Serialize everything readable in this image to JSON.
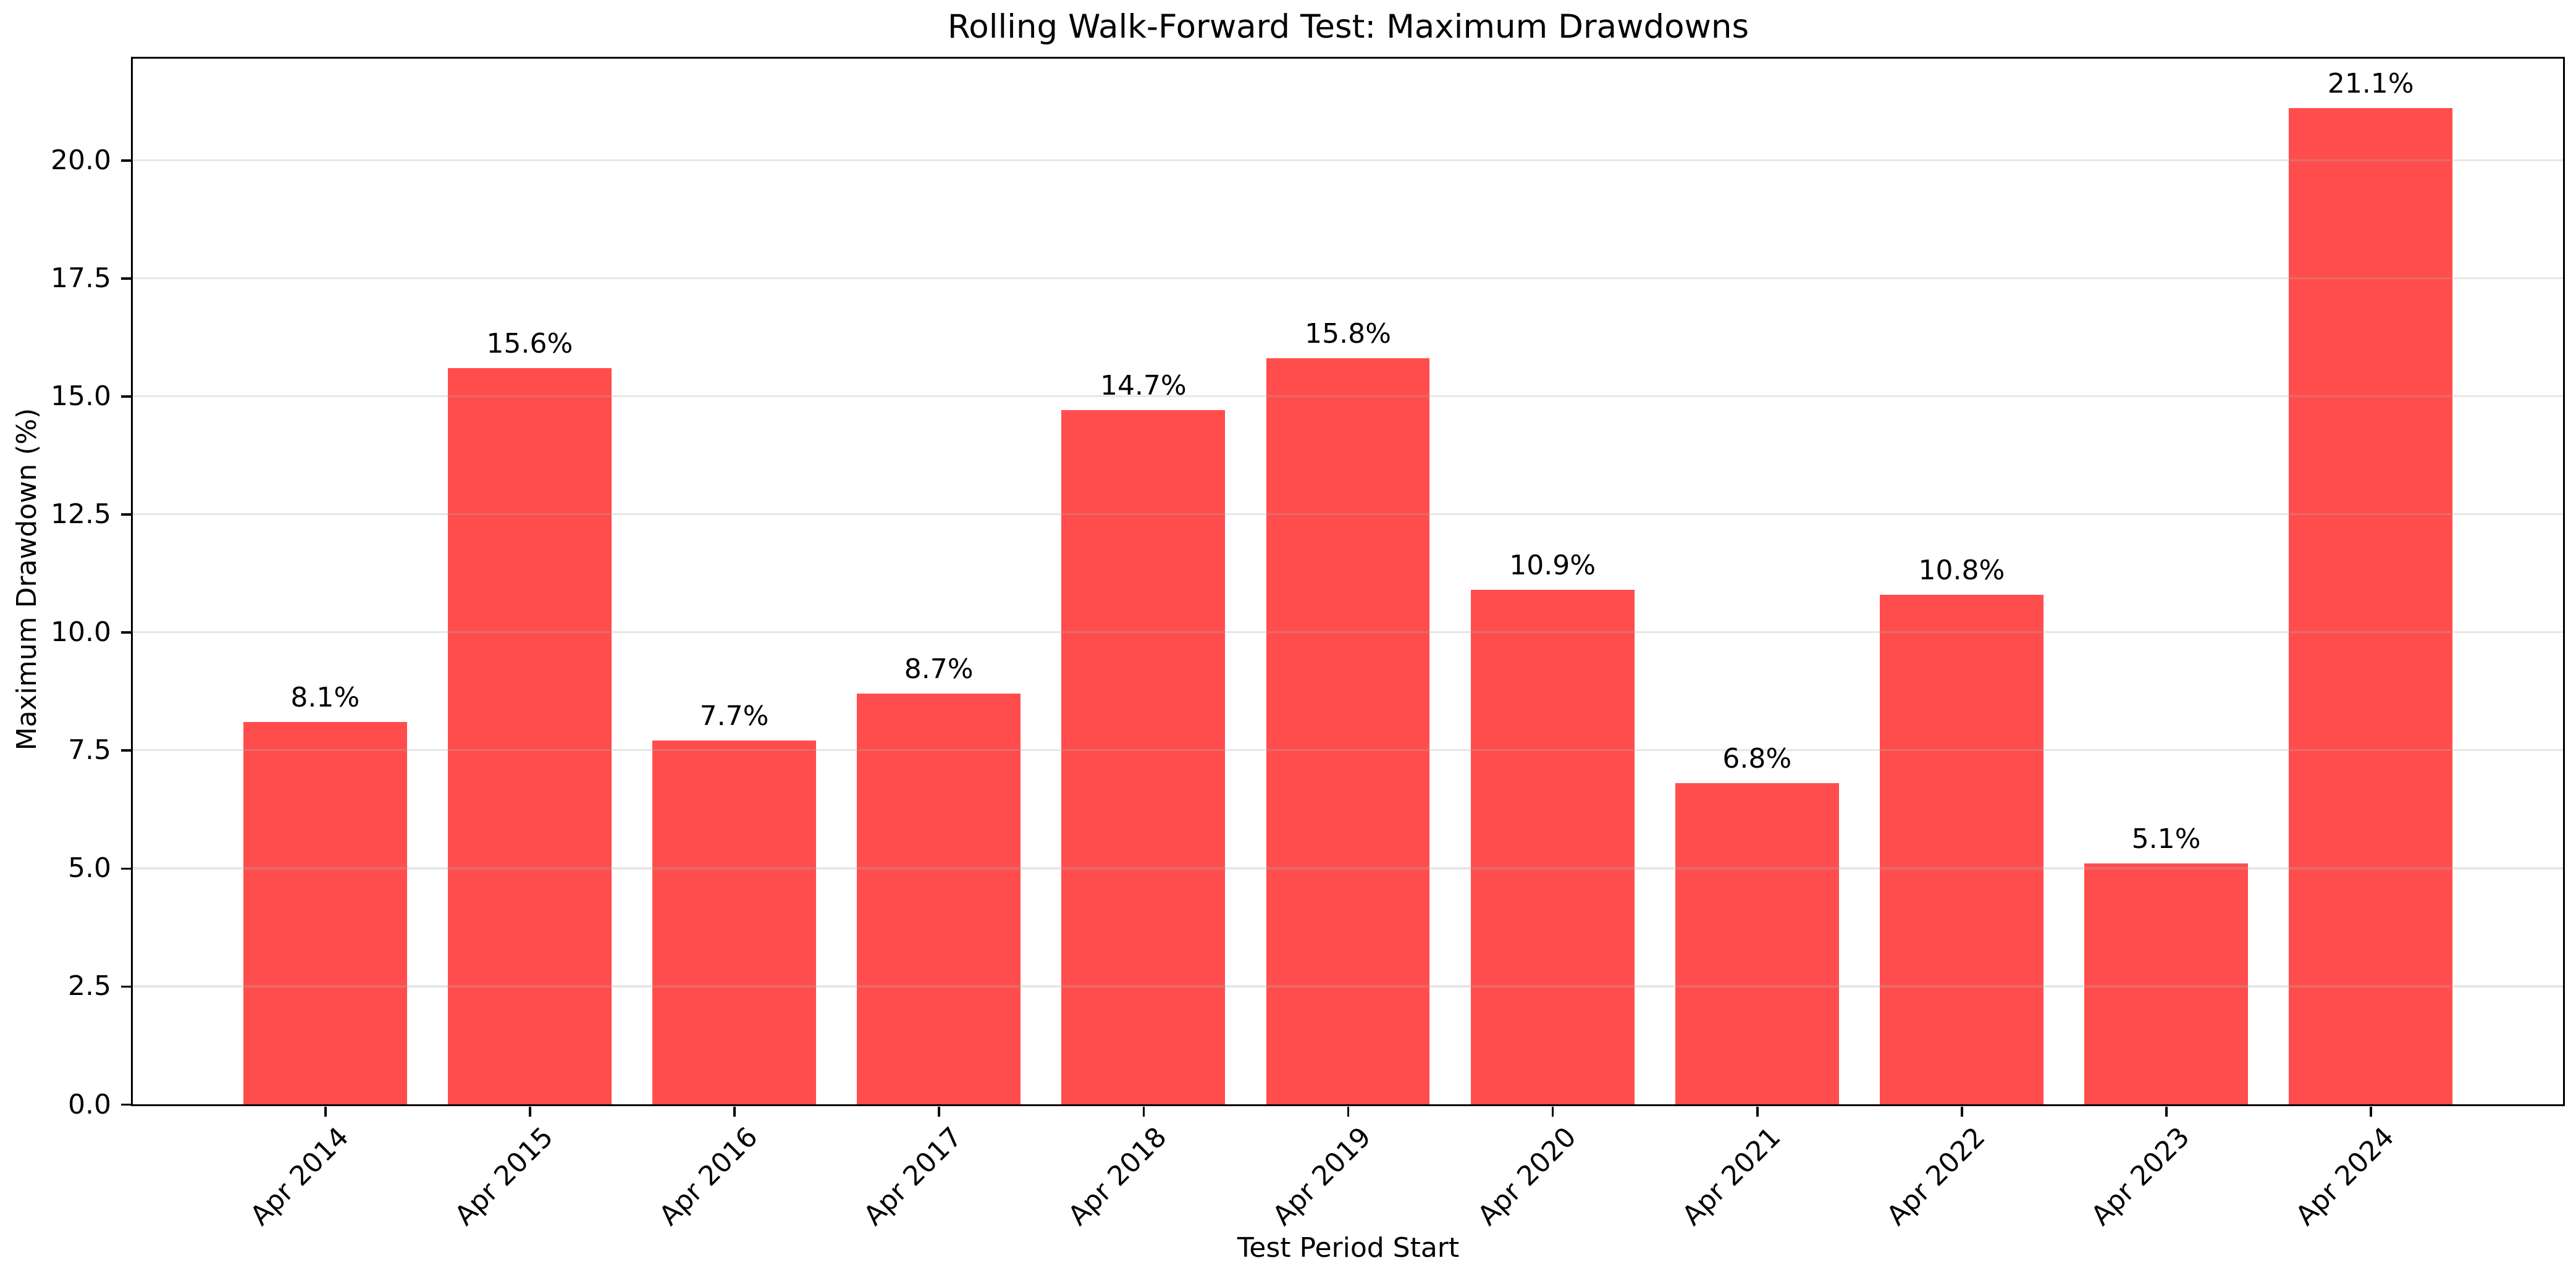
{
  "chart_data": {
    "type": "bar",
    "title": "Rolling Walk-Forward Test: Maximum Drawdowns",
    "xlabel": "Test Period Start",
    "ylabel": "Maximum Drawdown (%)",
    "categories": [
      "Apr 2014",
      "Apr 2015",
      "Apr 2016",
      "Apr 2017",
      "Apr 2018",
      "Apr 2019",
      "Apr 2020",
      "Apr 2021",
      "Apr 2022",
      "Apr 2023",
      "Apr 2024"
    ],
    "values": [
      8.1,
      15.6,
      7.7,
      8.7,
      14.7,
      15.8,
      10.9,
      6.8,
      10.8,
      5.1,
      21.1
    ],
    "bar_labels": [
      "8.1%",
      "15.6%",
      "7.7%",
      "8.7%",
      "14.7%",
      "15.8%",
      "10.9%",
      "6.8%",
      "10.8%",
      "5.1%",
      "21.1%"
    ],
    "ylim": [
      0,
      22.15
    ],
    "yticks": [
      0.0,
      2.5,
      5.0,
      7.5,
      10.0,
      12.5,
      15.0,
      17.5,
      20.0
    ],
    "ytick_labels": [
      "0.0",
      "2.5",
      "5.0",
      "7.5",
      "10.0",
      "12.5",
      "15.0",
      "17.5",
      "20.0"
    ],
    "bar_color": "#FF4D4D",
    "grid": true,
    "grid_color": "#B0B0B0",
    "grid_alpha": 0.3,
    "bar_width_fraction": 0.8,
    "xtick_rotation": 45,
    "legend": "none"
  }
}
